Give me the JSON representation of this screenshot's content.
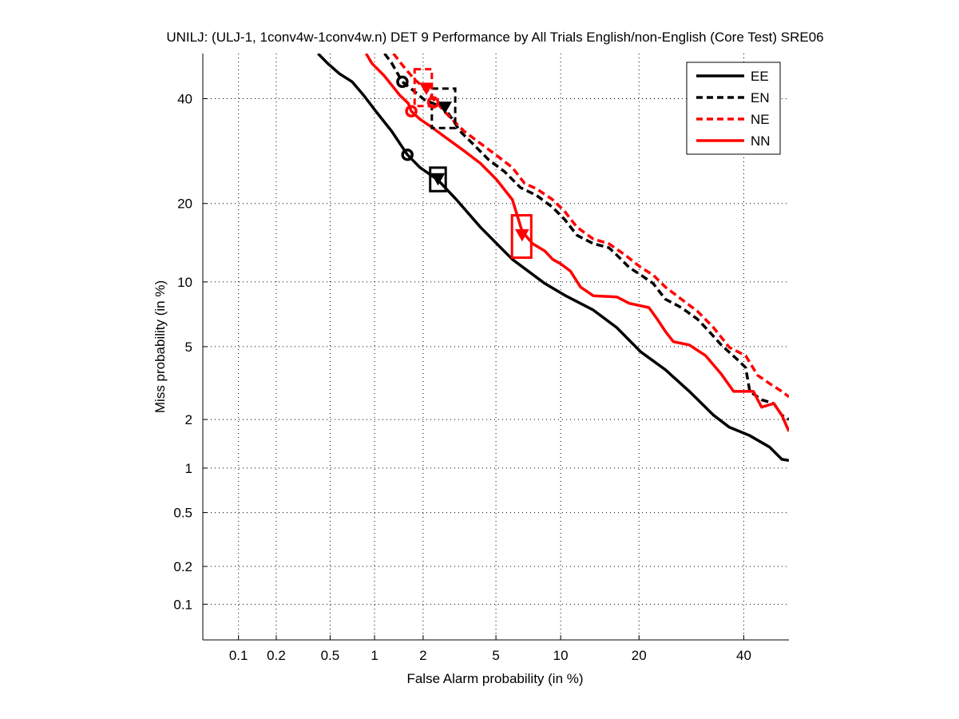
{
  "chart_data": {
    "type": "line",
    "title": "UNILJ: (ULJ-1, 1conv4w-1conv4w.n) DET 9 Performance by All Trials English/non-English (Core Test) SRE06",
    "xlabel": "False Alarm probability (in %)",
    "ylabel": "Miss probability (in %)",
    "scale": "normal-deviate",
    "xlim": [
      0.05,
      50
    ],
    "ylim": [
      0.05,
      50
    ],
    "xticks": [
      0.1,
      0.2,
      0.5,
      1,
      2,
      5,
      10,
      20,
      40
    ],
    "xtick_labels": [
      "0.1",
      "0.2",
      "0.5",
      "1",
      "2",
      "5",
      "10",
      "20",
      "40"
    ],
    "yticks": [
      0.1,
      0.2,
      0.5,
      1,
      2,
      5,
      10,
      20,
      40
    ],
    "ytick_labels": [
      "0.1",
      "0.2",
      "0.5",
      "1",
      "2",
      "5",
      "10",
      "20",
      "40"
    ],
    "grid": true,
    "legend_position": "top-right",
    "series": [
      {
        "name": "EE",
        "color": "#000000",
        "style": "solid",
        "x": [
          0.41,
          0.48,
          0.58,
          0.71,
          0.85,
          1.02,
          1.29,
          1.61,
          1.92,
          2.44,
          3.1,
          4.16,
          6.03,
          8.52,
          10.5,
          13.6,
          16.7,
          20.3,
          24.4,
          28.8,
          33.6,
          36.9,
          41.3,
          45.7,
          48.4,
          50
        ],
        "y": [
          50,
          47.8,
          45.5,
          43.7,
          40.7,
          37.3,
          33.1,
          28.5,
          26.1,
          23.9,
          20.6,
          16.5,
          12.4,
          9.85,
          8.7,
          7.5,
          6.2,
          4.7,
          3.8,
          2.9,
          2.12,
          1.8,
          1.6,
          1.36,
          1.14,
          1.12
        ],
        "min_dcf": {
          "x": 1.61,
          "y": 28.5
        },
        "act_dcf": {
          "x": 2.44,
          "y": 23.9,
          "x_range": [
            2.2,
            2.7
          ],
          "y_range": [
            22.0,
            26.1
          ]
        }
      },
      {
        "name": "EN",
        "color": "#000000",
        "style": "dashed",
        "x": [
          1.16,
          1.29,
          1.5,
          1.72,
          2.03,
          2.67,
          2.94,
          3.25,
          3.78,
          4.58,
          5.51,
          6.59,
          7.82,
          9.24,
          10.4,
          11.7,
          13.6,
          15.6,
          16.7,
          18.5,
          20.3,
          22.3,
          24.4,
          27.3,
          30.4,
          32.7,
          35.2,
          38.6,
          40.4,
          41.3,
          43.9,
          46.6,
          48.4,
          50
        ],
        "y": [
          50,
          47.8,
          43.7,
          42.0,
          39.8,
          37.9,
          35.6,
          33.1,
          30.7,
          27.6,
          25.4,
          22.6,
          21.3,
          19.4,
          17.6,
          15.4,
          14.3,
          13.8,
          12.9,
          11.5,
          10.7,
          9.85,
          8.4,
          7.7,
          6.8,
          5.95,
          5.1,
          4.3,
          3.9,
          2.9,
          2.6,
          2.48,
          2.12,
          2.0
        ],
        "min_dcf": {
          "x": 1.5,
          "y": 43.7
        },
        "act_dcf": {
          "x": 2.67,
          "y": 37.9,
          "x_range": [
            2.25,
            3.05
          ],
          "y_range": [
            33.8,
            42.2
          ]
        }
      },
      {
        "name": "NE",
        "color": "#ff0000",
        "style": "dashed",
        "x": [
          1.32,
          1.54,
          1.78,
          2.09,
          2.31,
          2.79,
          3.42,
          4.16,
          5.03,
          6.03,
          6.89,
          7.82,
          9.24,
          10.4,
          11.7,
          13.6,
          15.6,
          17.9,
          20.3,
          22.3,
          24.4,
          27.3,
          30.4,
          33.6,
          36.9,
          40.4,
          43.0,
          45.7,
          48.4,
          50
        ],
        "y": [
          50,
          46.9,
          44.2,
          42.0,
          39.8,
          36.4,
          33.1,
          30.7,
          28.4,
          26.1,
          23.3,
          22.4,
          20.6,
          18.8,
          16.5,
          14.9,
          14.3,
          12.9,
          11.5,
          10.7,
          9.5,
          8.4,
          7.4,
          6.2,
          4.96,
          4.5,
          3.55,
          3.2,
          2.9,
          2.7
        ],
        "min_dcf": {
          "x": 2.29,
          "y": 39.2
        },
        "act_dcf": {
          "x": 2.09,
          "y": 42.0,
          "x_range": [
            1.78,
            2.25
          ],
          "y_range": [
            38.4,
            46.5
          ]
        }
      },
      {
        "name": "NN",
        "color": "#ff0000",
        "style": "solid",
        "x": [
          0.88,
          0.96,
          1.15,
          1.32,
          1.45,
          1.63,
          1.7,
          1.92,
          2.26,
          2.79,
          3.42,
          4.16,
          5.03,
          6.03,
          6.71,
          7.51,
          8.52,
          9.24,
          10.0,
          11.0,
          12.1,
          13.6,
          16.7,
          18.5,
          21.6,
          23.0,
          24.4,
          25.8,
          28.8,
          32.0,
          35.2,
          37.8,
          42.1,
          43.9,
          46.6,
          48.4,
          50
        ],
        "y": [
          50,
          47.8,
          45.1,
          42.5,
          40.7,
          39.0,
          37.3,
          35.6,
          33.9,
          31.5,
          29.2,
          26.9,
          24.0,
          20.6,
          15.9,
          14.3,
          13.4,
          12.4,
          11.9,
          11.1,
          9.5,
          8.7,
          8.6,
          8.05,
          7.7,
          6.8,
          5.95,
          5.3,
          5.1,
          4.5,
          3.6,
          2.9,
          2.9,
          2.36,
          2.48,
          2.12,
          1.7
        ],
        "min_dcf": {
          "x": 1.7,
          "y": 37.3
        },
        "act_dcf": {
          "x": 6.71,
          "y": 15.3,
          "x_range": [
            6.0,
            7.4
          ],
          "y_range": [
            12.6,
            18.2
          ]
        }
      }
    ]
  }
}
